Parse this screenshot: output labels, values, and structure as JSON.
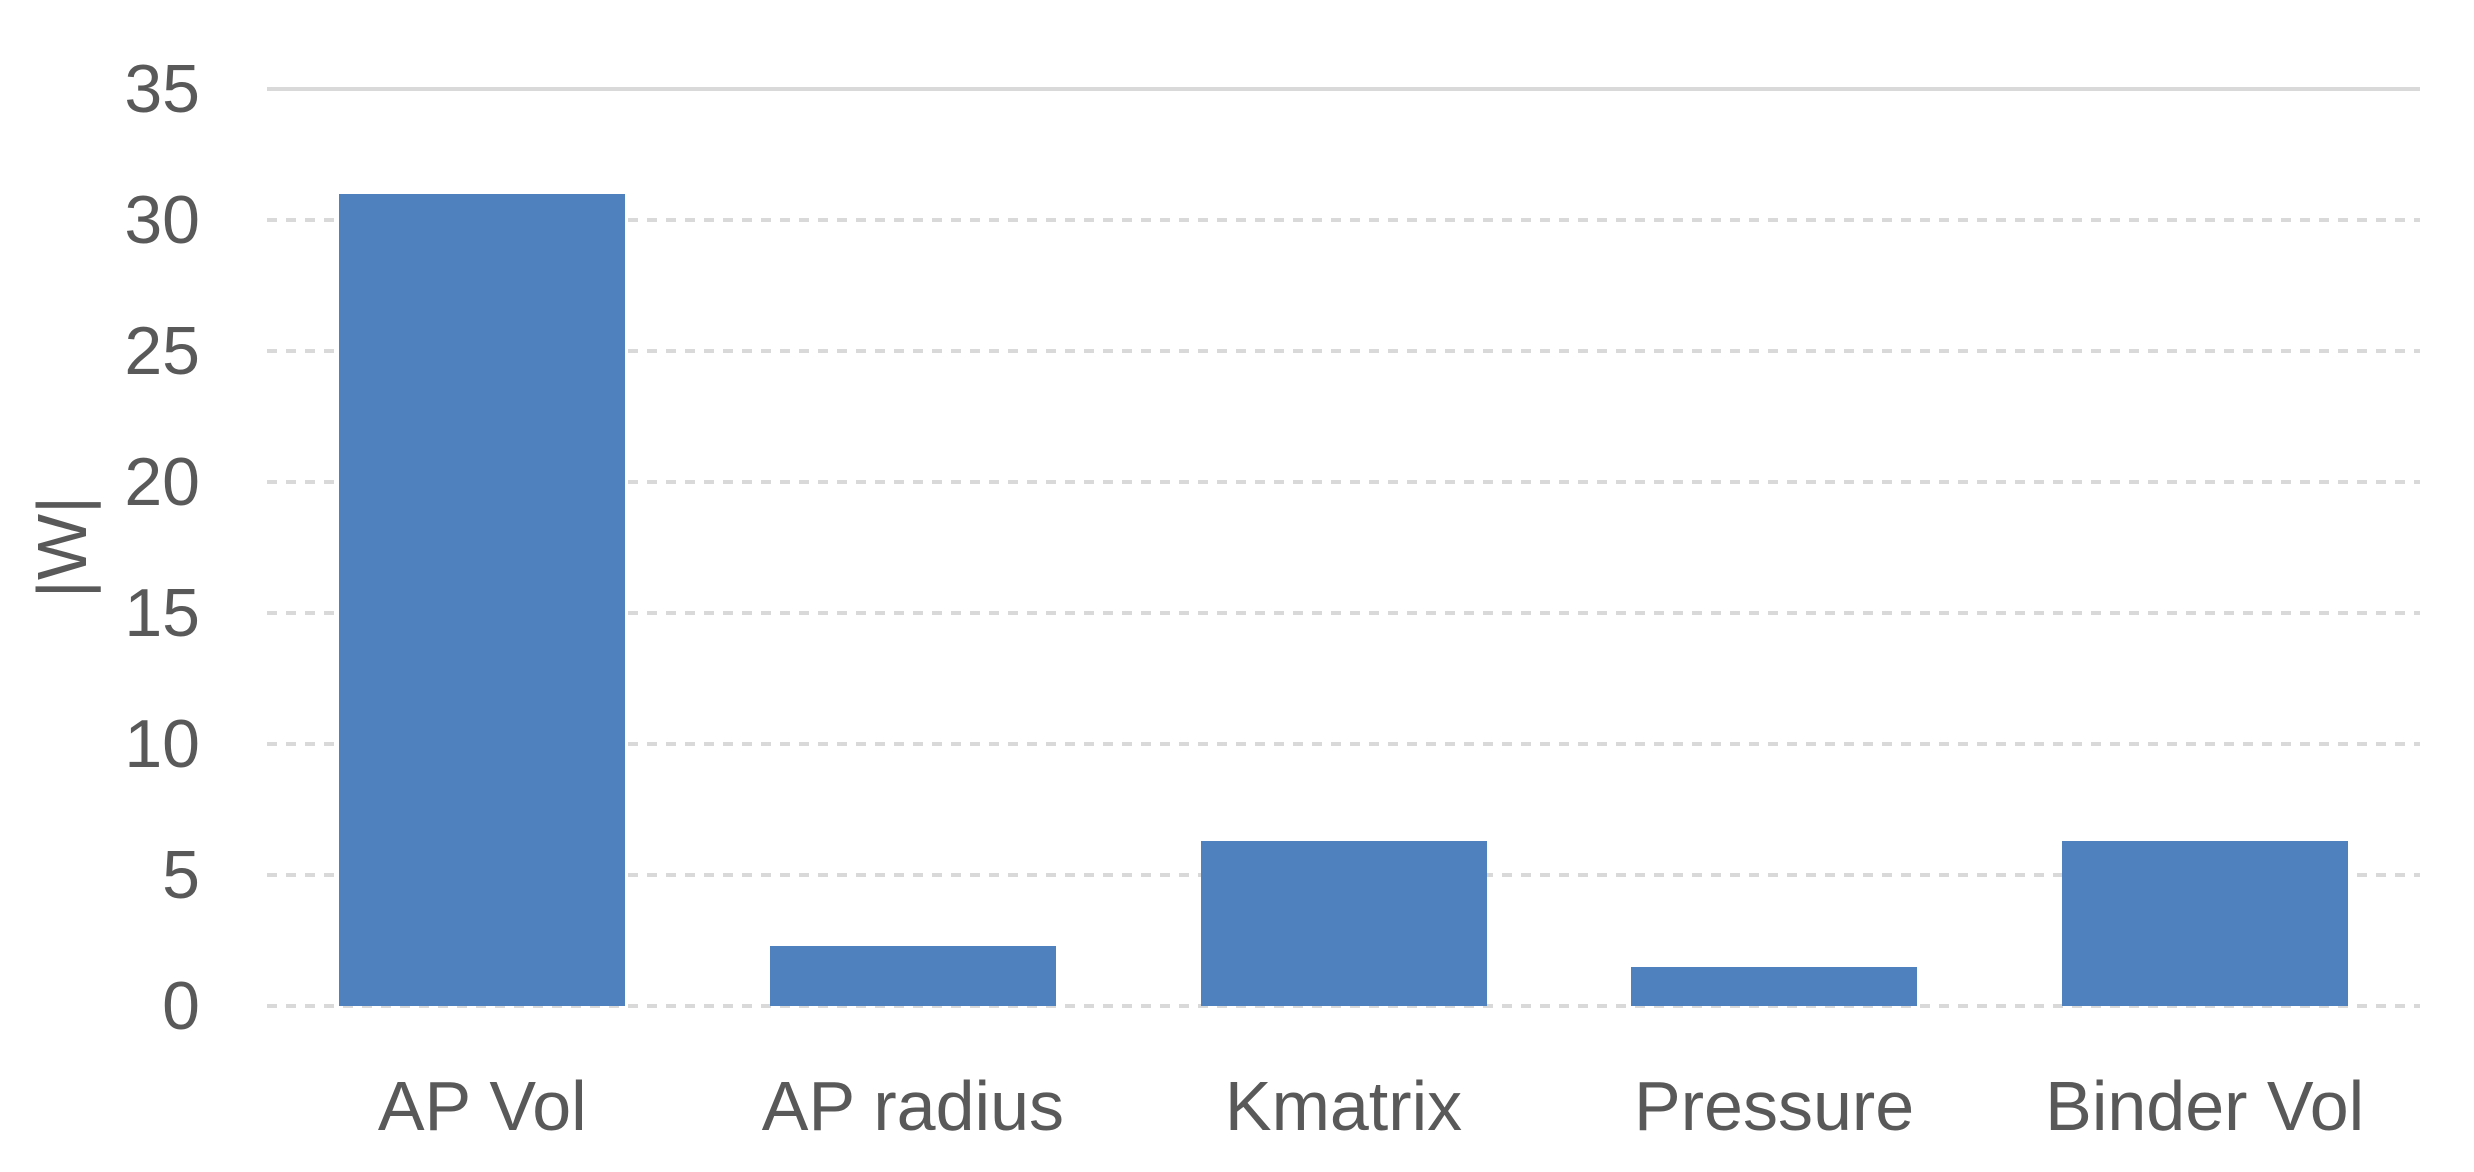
{
  "chart_data": {
    "type": "bar",
    "title": "",
    "categories": [
      "AP Vol",
      "AP radius",
      "Kmatrix",
      "Pressure",
      "Binder Vol"
    ],
    "values": [
      31,
      2.3,
      6.3,
      1.5,
      6.3
    ],
    "xlabel": "",
    "ylabel": "|W|",
    "ylim": [
      0,
      35
    ],
    "yticks": [
      0,
      5,
      10,
      15,
      20,
      25,
      30,
      35
    ],
    "grid": true,
    "legend": false,
    "bar_color": "#4E81BD",
    "gridline_color": "#D9D9D9",
    "text_color": "#595959"
  }
}
